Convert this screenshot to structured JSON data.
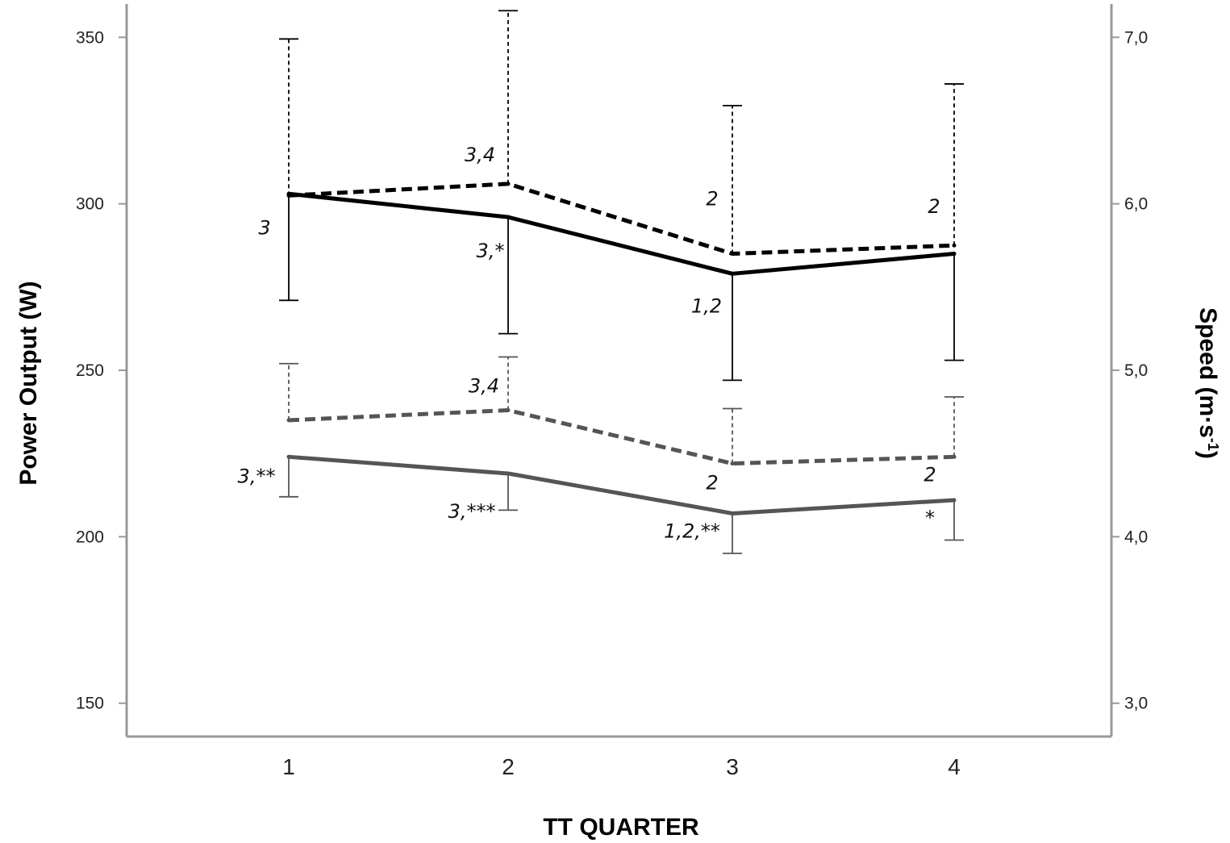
{
  "chart_data": {
    "type": "line",
    "xlabel": "TT QUARTER",
    "ylabel": "Power Output (W)",
    "y2label": "Speed (m·s⁻¹)",
    "y2label_parts": {
      "main": "Speed (m·s",
      "sup": "-1",
      "close": ")"
    },
    "categories": [
      "1",
      "2",
      "3",
      "4"
    ],
    "ylim": [
      140,
      360
    ],
    "y2lim": [
      2.8,
      7.2
    ],
    "yticks": [
      "150",
      "200",
      "250",
      "300",
      "350"
    ],
    "y2ticks": [
      "3,0",
      "4,0",
      "5,0",
      "6,0",
      "7,0"
    ],
    "series": [
      {
        "axis": "left",
        "color": "#000000",
        "dashed": false,
        "errorbar_side": "down",
        "values": [
          303,
          296,
          279,
          285
        ],
        "error": [
          32,
          35,
          32,
          32
        ],
        "annotations": [
          "3",
          "3,*",
          "1,2",
          ""
        ]
      },
      {
        "axis": "right",
        "color": "#000000",
        "dashed": true,
        "errorbar_side": "up",
        "values": [
          6.05,
          6.12,
          5.7,
          5.75
        ],
        "error": [
          0.94,
          1.04,
          0.89,
          0.97
        ],
        "annotations": [
          "",
          "3,4",
          "2",
          "2"
        ]
      },
      {
        "axis": "left",
        "color": "#555555",
        "dashed": false,
        "errorbar_side": "down",
        "values": [
          224,
          219,
          207,
          211
        ],
        "error": [
          12,
          11,
          12,
          12
        ],
        "annotations": [
          "3,**",
          "3,***",
          "1,2,**",
          "*"
        ]
      },
      {
        "axis": "right",
        "color": "#555555",
        "dashed": true,
        "errorbar_side": "up",
        "values": [
          4.7,
          4.76,
          4.44,
          4.48
        ],
        "error": [
          0.34,
          0.32,
          0.33,
          0.36
        ],
        "annotations": [
          "",
          "3,4",
          "2",
          "2"
        ]
      }
    ],
    "grid": false,
    "legend": "none"
  }
}
